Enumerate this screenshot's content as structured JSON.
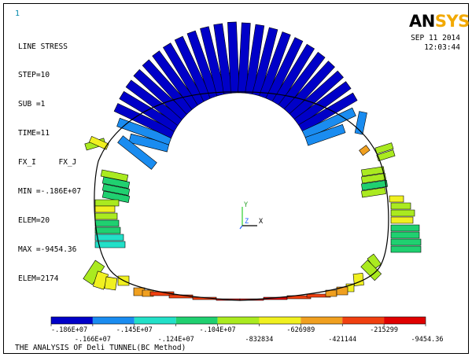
{
  "window_number": "1",
  "header": {
    "lines": [
      "LINE STRESS",
      "STEP=10",
      "SUB =1",
      "TIME=11",
      "FX_I     FX_J",
      "MIN =-.186E+07",
      "ELEM=20",
      "MAX =-9454.36",
      "ELEM=2174"
    ]
  },
  "logo": {
    "part1": "AN",
    "part2": "SYS"
  },
  "date": {
    "date": "SEP 11 2014",
    "time": "12:03:44"
  },
  "axis_triad": {
    "y": "Y",
    "z": "Z",
    "x": "X"
  },
  "legend": {
    "colors": [
      "#0000c8",
      "#1a8cf0",
      "#22e0c8",
      "#20d070",
      "#aaea20",
      "#f0f020",
      "#f0a020",
      "#f04010",
      "#e00000"
    ],
    "top_labels": [
      "-.186E+07",
      "-.145E+07",
      "-.104E+07",
      "-626989",
      "-215299"
    ],
    "bottom_labels": [
      "-.166E+07",
      "-.124E+07",
      "-832834",
      "-421144",
      "-9454.36"
    ]
  },
  "title": "THE ANALYSIS OF Deli TUNNEL(BC Method)"
}
